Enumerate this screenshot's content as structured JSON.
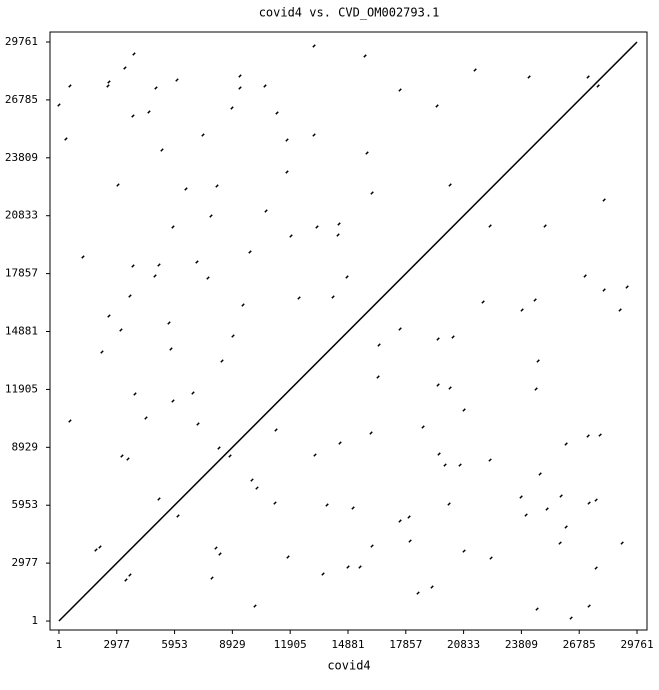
{
  "chart_data": {
    "type": "dotplot",
    "title": "covid4 vs. CVD_OM002793.1",
    "x_label": "covid4",
    "xlim": [
      -460,
      30275
    ],
    "ylim": [
      -460,
      30275
    ],
    "xticks": [
      1,
      2977,
      5953,
      8929,
      11905,
      14881,
      17857,
      20833,
      23809,
      26785,
      29761
    ],
    "yticks": [
      1,
      2977,
      5953,
      8929,
      11905,
      14881,
      17857,
      20833,
      23809,
      26785,
      29761
    ],
    "color": "#000000",
    "lines": {
      "x": [
        1,
        29761
      ],
      "y": [
        1,
        29761
      ]
    },
    "points": {
      "x": [
        566,
        1,
        360,
        2575,
        2524,
        3399,
        3863,
        3811,
        4635,
        4996,
        5305,
        6077,
        7416,
        9322,
        9322,
        8910,
        10609,
        11227,
        11742,
        13133,
        13133,
        15759,
        15862,
        16120,
        17562,
        19467,
        21424,
        24205,
        27244,
        27759,
        3039,
        6541,
        8137,
        11742,
        10661,
        7828,
        5871,
        11948,
        13287,
        14369,
        14420,
        1236,
        3811,
        5150,
        4944,
        7107,
        7674,
        9837,
        14832,
        3657,
        9476,
        12360,
        14111,
        2575,
        3193,
        5665,
        2215,
        5768,
        8961,
        8395,
        3914,
        6901,
        5871,
        4481,
        7159,
        566,
        16480,
        16429,
        17562,
        21836,
        23845,
        24514,
        28068,
        28892,
        29252,
        27089,
        22197,
        25029,
        28068,
        20137,
        19519,
        20291,
        24669,
        19519,
        20137,
        20858,
        24566,
        3245,
        3554,
        8240,
        8807,
        9940,
        10197,
        11124,
        13184,
        14472,
        16068,
        18746,
        19570,
        19879,
        20652,
        22197,
        27244,
        27862,
        26111,
        24772,
        23793,
        24051,
        25132,
        25853,
        27295,
        27656,
        28995,
        26111,
        25802,
        27656,
        24617,
        26368,
        27295,
        20085,
        18025,
        17562,
        16120,
        14884,
        15502,
        18077,
        18489,
        19210,
        22248,
        20858,
        11794,
        13596,
        8086,
        8292,
        7880,
        1906,
        2112,
        3451,
        3657,
        5150,
        6129,
        10094,
        13803,
        15142,
        11176
      ],
      "y": [
        27499,
        26522,
        24775,
        27705,
        27499,
        28424,
        29144,
        25957,
        26163,
        27396,
        24209,
        27807,
        24980,
        28013,
        27396,
        26368,
        27499,
        26111,
        24723,
        29555,
        24980,
        29041,
        24055,
        21999,
        27293,
        26471,
        28321,
        27962,
        27962,
        27499,
        22410,
        22205,
        22359,
        23079,
        21074,
        20817,
        20252,
        19789,
        20252,
        19840,
        20406,
        18710,
        18247,
        18298,
        17733,
        18453,
        17630,
        18967,
        17682,
        16705,
        16242,
        16602,
        16654,
        15677,
        14957,
        15317,
        13827,
        13981,
        14649,
        13364,
        11668,
        11719,
        11308,
        10434,
        10126,
        10280,
        14186,
        12542,
        15009,
        16397,
        15985,
        16499,
        17013,
        15985,
        17168,
        17733,
        20303,
        20303,
        21639,
        22410,
        14495,
        14598,
        13364,
        12130,
        11976,
        10845,
        11925,
        8481,
        8327,
        8892,
        8481,
        7247,
        6836,
        6065,
        8532,
        9149,
        9663,
        9972,
        8584,
        8018,
        8018,
        8275,
        9509,
        9560,
        9098,
        7556,
        6374,
        5448,
        5757,
        6425,
        6065,
        6219,
        4009,
        4832,
        4009,
        2724,
        617,
        154,
        771,
        6014,
        5346,
        5140,
        3855,
        2776,
        2776,
        4112,
        1439,
        1748,
        3238,
        3598,
        3290,
        2416,
        3752,
        3444,
        2210,
        3650,
        3804,
        2108,
        2365,
        6271,
        5398,
        771,
        5963,
        5809,
        9818
      ]
    }
  }
}
